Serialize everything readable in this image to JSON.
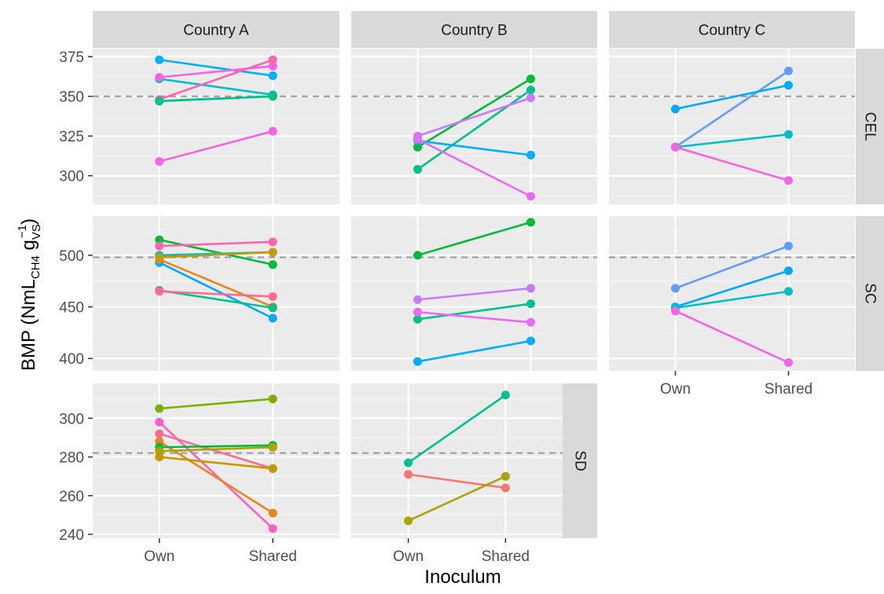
{
  "chart_data": {
    "type": "line",
    "xlabel": "Inoculum",
    "ylabel": {
      "main": "BMP",
      "unit_prefix": "NmL",
      "unit_sub": "CH4",
      "unit_g": "g",
      "unit_g_sub": "VS",
      "unit_g_sup": "−1"
    },
    "x_categories": [
      "Own",
      "Shared"
    ],
    "columns": [
      "Country A",
      "Country B",
      "Country C"
    ],
    "rows": [
      "CEL",
      "SC",
      "SD"
    ],
    "row_ylim": {
      "CEL": [
        282,
        380
      ],
      "SC": [
        388,
        538
      ],
      "SD": [
        238,
        318
      ]
    },
    "row_ticks": {
      "CEL": [
        300,
        325,
        350,
        375
      ],
      "SC": [
        400,
        450,
        500
      ],
      "SD": [
        240,
        260,
        280,
        300
      ]
    },
    "reference_lines": {
      "CEL": 350,
      "SC": 498,
      "SD": 282
    },
    "grid": true,
    "panels": [
      {
        "column": "Country A",
        "row": "CEL",
        "series": [
          {
            "color": "#00b0f6",
            "values": [
              373,
              363
            ]
          },
          {
            "color": "#00bfc4",
            "values": [
              361,
              351
            ]
          },
          {
            "color": "#f564e3",
            "values": [
              362,
              369
            ]
          },
          {
            "color": "#ff64b0",
            "values": [
              348,
              373
            ]
          },
          {
            "color": "#00bc59",
            "values": [
              347,
              350
            ]
          },
          {
            "color": "#00c08b",
            "values": [
              347,
              350
            ]
          },
          {
            "color": "#f564e3",
            "values": [
              309,
              328
            ]
          }
        ]
      },
      {
        "column": "Country B",
        "row": "CEL",
        "series": [
          {
            "color": "#00ba38",
            "values": [
              318,
              361
            ]
          },
          {
            "color": "#00c08b",
            "values": [
              304,
              354
            ]
          },
          {
            "color": "#c77cff",
            "values": [
              325,
              349
            ]
          },
          {
            "color": "#00b0f6",
            "values": [
              322,
              313
            ]
          },
          {
            "color": "#e76bf3",
            "values": [
              323,
              287
            ]
          }
        ]
      },
      {
        "column": "Country C",
        "row": "CEL",
        "series": [
          {
            "color": "#619cff",
            "values": [
              318,
              366
            ]
          },
          {
            "color": "#00a9ff",
            "values": [
              342,
              357
            ]
          },
          {
            "color": "#00bfc4",
            "values": [
              318,
              326
            ]
          },
          {
            "color": "#f564e3",
            "values": [
              318,
              297
            ]
          }
        ]
      },
      {
        "column": "Country A",
        "row": "SC",
        "series": [
          {
            "color": "#00ba38",
            "values": [
              515,
              491
            ]
          },
          {
            "color": "#ff64b0",
            "values": [
              509,
              513
            ]
          },
          {
            "color": "#00bfc4",
            "values": [
              500,
              503
            ]
          },
          {
            "color": "#00a9ff",
            "values": [
              493,
              439
            ]
          },
          {
            "color": "#e7861b",
            "values": [
              496,
              450
            ]
          },
          {
            "color": "#c49a00",
            "values": [
              498,
              503
            ]
          },
          {
            "color": "#00c08b",
            "values": [
              466,
              449
            ]
          },
          {
            "color": "#ff6c91",
            "values": [
              465,
              460
            ]
          }
        ]
      },
      {
        "column": "Country B",
        "row": "SC",
        "series": [
          {
            "color": "#00ba38",
            "values": [
              500,
              532
            ]
          },
          {
            "color": "#c77cff",
            "values": [
              457,
              468
            ]
          },
          {
            "color": "#00c08b",
            "values": [
              438,
              453
            ]
          },
          {
            "color": "#e76bf3",
            "values": [
              445,
              435
            ]
          },
          {
            "color": "#00b0f6",
            "values": [
              397,
              417
            ]
          }
        ]
      },
      {
        "column": "Country C",
        "row": "SC",
        "series": [
          {
            "color": "#619cff",
            "values": [
              468,
              509
            ]
          },
          {
            "color": "#00a9ff",
            "values": [
              450,
              485
            ]
          },
          {
            "color": "#00bfc4",
            "values": [
              449,
              465
            ]
          },
          {
            "color": "#f564e3",
            "values": [
              446,
              396
            ]
          }
        ]
      },
      {
        "column": "Country A",
        "row": "SD",
        "series": [
          {
            "color": "#7cae00",
            "values": [
              305,
              310
            ]
          },
          {
            "color": "#ff61c3",
            "values": [
              298,
              243
            ]
          },
          {
            "color": "#ff6c91",
            "values": [
              292,
              274
            ]
          },
          {
            "color": "#e7861b",
            "values": [
              288,
              251
            ]
          },
          {
            "color": "#00ba38",
            "values": [
              285,
              286
            ]
          },
          {
            "color": "#aba300",
            "values": [
              283,
              285
            ]
          },
          {
            "color": "#c49a00",
            "values": [
              280,
              274
            ]
          }
        ]
      },
      {
        "column": "Country B",
        "row": "SD",
        "series": [
          {
            "color": "#00c08b",
            "values": [
              277,
              312
            ]
          },
          {
            "color": "#f8766d",
            "values": [
              271,
              264
            ]
          },
          {
            "color": "#aba300",
            "values": [
              247,
              270
            ]
          }
        ]
      }
    ]
  }
}
